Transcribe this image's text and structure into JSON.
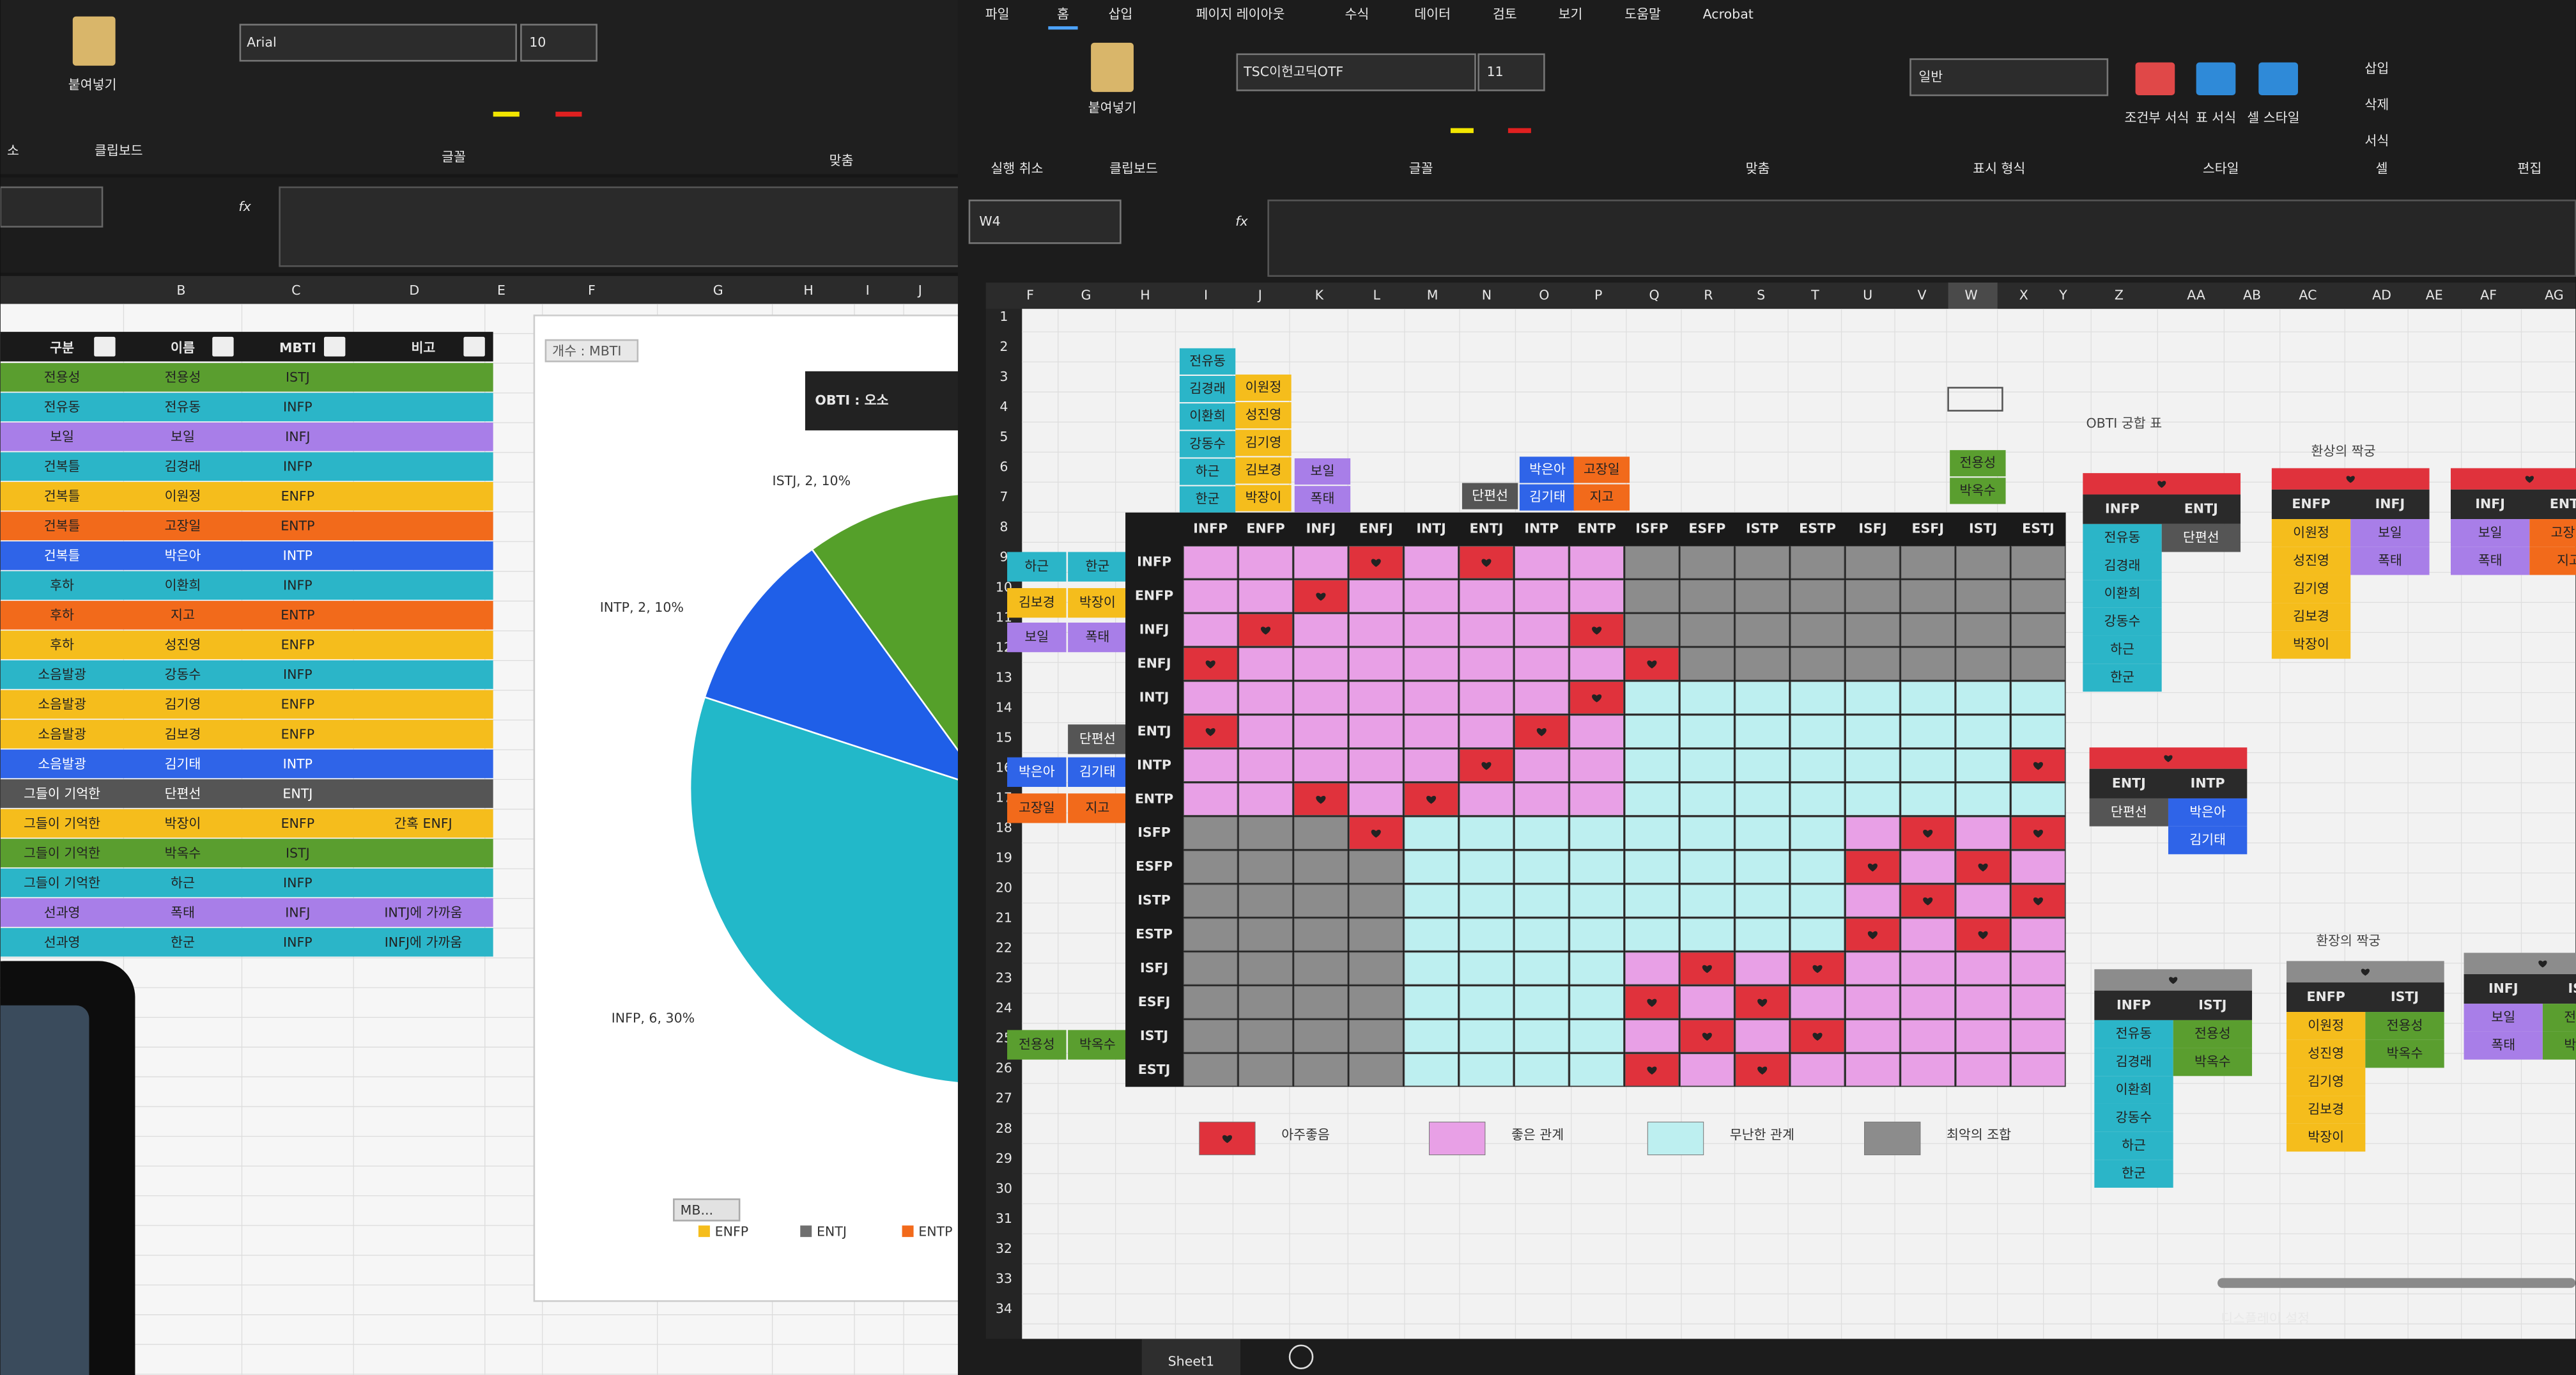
{
  "left_window": {
    "ribbon": {
      "paste": "붙여넣기",
      "font": "Arial",
      "size": 10,
      "fx": "fx",
      "groups": [
        "소",
        "클립보드",
        "글꼴",
        "맞춤"
      ]
    },
    "columns": [
      "B",
      "C",
      "D",
      "E",
      "F",
      "G",
      "H",
      "I",
      "J"
    ],
    "table": {
      "header": [
        "구분",
        "이름",
        "MBTI",
        "비고"
      ],
      "rows": [
        {
          "cells": [
            "전용성",
            "전용성",
            "ISTJ"
          ],
          "color": "#5a9e2f"
        },
        {
          "cells": [
            "전유동",
            "전유동",
            "INFP"
          ],
          "color": "#2bb5c8"
        },
        {
          "cells": [
            "보일",
            "보일",
            "INFJ"
          ],
          "color": "#a87ee8"
        },
        {
          "cells": [
            "건복틀",
            "김경래",
            "INFP"
          ],
          "color": "#2bb5c8"
        },
        {
          "cells": [
            "건복틀",
            "이원정",
            "ENFP"
          ],
          "color": "#f5bd1c"
        },
        {
          "cells": [
            "건복틀",
            "고장일",
            "ENTP"
          ],
          "color": "#f26a1b"
        },
        {
          "cells": [
            "건복틀",
            "박은아",
            "INTP"
          ],
          "color": "#2f64e8"
        },
        {
          "cells": [
            "후하",
            "이환희",
            "INFP"
          ],
          "color": "#2bb5c8"
        },
        {
          "cells": [
            "후하",
            "지고",
            "ENTP"
          ],
          "color": "#f26a1b"
        },
        {
          "cells": [
            "후하",
            "성진영",
            "ENFP"
          ],
          "color": "#f5bd1c"
        },
        {
          "cells": [
            "소음발광",
            "강동수",
            "INFP"
          ],
          "color": "#2bb5c8"
        },
        {
          "cells": [
            "소음발광",
            "김기영",
            "ENFP"
          ],
          "color": "#f5bd1c"
        },
        {
          "cells": [
            "소음발광",
            "김보경",
            "ENFP"
          ],
          "color": "#f5bd1c"
        },
        {
          "cells": [
            "소음발광",
            "김기태",
            "INTP"
          ],
          "color": "#2f64e8"
        },
        {
          "cells": [
            "그들이 기억한",
            "단편선",
            "ENTJ"
          ],
          "color": "#555555"
        },
        {
          "cells": [
            "그들이 기억한",
            "박장이",
            "ENFP",
            "간혹 ENFJ"
          ],
          "color": "#f5bd1c"
        },
        {
          "cells": [
            "그들이 기억한",
            "박옥수",
            "ISTJ"
          ],
          "color": "#5a9e2f"
        },
        {
          "cells": [
            "그들이 기억한",
            "하근",
            "INFP"
          ],
          "color": "#2bb5c8"
        },
        {
          "cells": [
            "선과영",
            "폭태",
            "INFJ",
            "INTJ에 가까움"
          ],
          "color": "#a87ee8"
        },
        {
          "cells": [
            "선과영",
            "한군",
            "INFP",
            "INFJ에 가까움"
          ],
          "color": "#2bb5c8"
        }
      ]
    },
    "chart": {
      "type": "pie",
      "field_label": "개수 : MBTI",
      "title": "OBTI : 오소",
      "filter": "MB...",
      "slices": [
        {
          "name": "INFP",
          "count": 6,
          "percent": 30,
          "label": "INFP, 6, 30%",
          "color": "#22b8c9"
        },
        {
          "name": "INTP",
          "count": 2,
          "percent": 10,
          "label": "INTP, 2, 10%",
          "color": "#1f5fe8"
        },
        {
          "name": "ISTJ",
          "count": 2,
          "percent": 10,
          "label": "ISTJ, 2, 10%",
          "color": "#55a02a"
        }
      ],
      "legend": [
        {
          "name": "ENFP",
          "color": "#f5bd1c"
        },
        {
          "name": "ENTJ",
          "color": "#6f6f6f"
        },
        {
          "name": "ENTP",
          "color": "#f26a1b"
        }
      ]
    }
  },
  "right_window": {
    "menu": [
      "파일",
      "홈",
      "삽입",
      "페이지 레이아웃",
      "수식",
      "데이터",
      "검토",
      "보기",
      "도움말",
      "Acrobat"
    ],
    "ribbon": {
      "font": "TSC이헌고딕OTF",
      "size": 11,
      "number_format": "일반",
      "paste": "붙여넣기",
      "buttons": [
        "조건부 서식",
        "표 서식",
        "셀 스타일",
        "삽입",
        "삭제",
        "서식"
      ],
      "groups": [
        "실행 취소",
        "클립보드",
        "글꼴",
        "맞춤",
        "표시 형식",
        "스타일",
        "셀",
        "편집"
      ]
    },
    "name_box": "W4",
    "fx": "fx",
    "columns": [
      "F",
      "G",
      "H",
      "I",
      "J",
      "K",
      "L",
      "M",
      "N",
      "O",
      "P",
      "Q",
      "R",
      "S",
      "T",
      "U",
      "V",
      "W",
      "X",
      "Y",
      "Z",
      "AA",
      "AB",
      "AC",
      "AD",
      "AE",
      "AF",
      "AG"
    ],
    "rows": [
      1,
      2,
      3,
      4,
      5,
      6,
      7,
      8,
      9,
      10,
      11,
      12,
      13,
      14,
      15,
      16,
      17,
      18,
      19,
      20,
      21,
      22,
      23,
      24,
      25,
      26,
      27,
      28,
      29,
      30,
      31,
      32,
      33,
      34
    ],
    "grid": {
      "types": [
        "INFP",
        "ENFP",
        "INFJ",
        "ENFJ",
        "INTJ",
        "ENTJ",
        "INTP",
        "ENTP",
        "ISFP",
        "ESFP",
        "ISTP",
        "ESTP",
        "ISFJ",
        "ESFJ",
        "ISTJ",
        "ESTJ"
      ],
      "legend": [
        {
          "text": "아주좋음",
          "color": "#e0323c"
        },
        {
          "text": "좋은 관계",
          "color": "#e8a0e6"
        },
        {
          "text": "무난한 관계",
          "color": "#bdeff0"
        },
        {
          "text": "최악의 조합",
          "color": "#8c8c8c"
        }
      ]
    },
    "tags": {
      "top": [
        {
          "items": [
            "전유동",
            "김경래",
            "이환희",
            "강동수",
            "하근",
            "한군"
          ],
          "color": "#2bb5c8"
        },
        {
          "items": [
            "이원정",
            "성진영",
            "김기영",
            "김보경",
            "박장이"
          ],
          "color": "#f5bd1c"
        },
        {
          "items": [
            "보일",
            "폭태"
          ],
          "color": "#a87ee8"
        },
        {
          "items": [
            "단편선"
          ],
          "color": "#555555"
        },
        {
          "items": [
            "박은아",
            "김기태"
          ],
          "color": "#2f64e8"
        },
        {
          "items": [
            "고장일",
            "지고"
          ],
          "color": "#f26a1b"
        },
        {
          "items": [
            "전용성",
            "박옥수"
          ],
          "color": "#5a9e2f"
        }
      ],
      "side": [
        {
          "items": [
            "하근",
            "한군"
          ],
          "color": "#2bb5c8"
        },
        {
          "items": [
            "김보경",
            "박장이"
          ],
          "color": "#f5bd1c"
        },
        {
          "items": [
            "보일",
            "폭태"
          ],
          "color": "#a87ee8"
        },
        {
          "items": [
            "단편선"
          ],
          "color": "#555555"
        },
        {
          "items": [
            "박은아",
            "김기태"
          ],
          "color": "#2f64e8"
        },
        {
          "items": [
            "고장일",
            "지고"
          ],
          "color": "#f26a1b"
        },
        {
          "items": [
            "전용성",
            "박옥수"
          ],
          "color": "#5a9e2f"
        }
      ]
    },
    "compat": {
      "title": "OBTI 궁합 표",
      "captions": [
        "환상의 짝궁",
        "환장의 짝궁"
      ],
      "pairs": [
        {
          "types": [
            "INFP",
            "ENTJ"
          ],
          "left": [
            "전유동",
            "김경래",
            "이환희",
            "강동수",
            "하근",
            "한군"
          ],
          "right": [
            "단편선"
          ],
          "colors": [
            "#2bb5c8",
            "#555555"
          ],
          "header_color": "#e0323c"
        },
        {
          "types": [
            "ENFP",
            "INFJ"
          ],
          "left": [
            "이원정",
            "성진영",
            "김기영",
            "김보경",
            "박장이"
          ],
          "right": [
            "보일",
            "폭태"
          ],
          "colors": [
            "#f5bd1c",
            "#a87ee8"
          ],
          "header_color": "#e0323c"
        },
        {
          "types": [
            "INFJ",
            "ENTP"
          ],
          "left": [
            "보일",
            "폭태"
          ],
          "right": [
            "고장일",
            "지고"
          ],
          "colors": [
            "#a87ee8",
            "#f26a1b"
          ],
          "header_color": "#e0323c"
        },
        {
          "types": [
            "ENTJ",
            "INTP"
          ],
          "left": [
            "단편선"
          ],
          "right": [
            "박은아",
            "김기태"
          ],
          "colors": [
            "#555555",
            "#2f64e8"
          ],
          "header_color": "#e0323c"
        },
        {
          "types": [
            "INFP",
            "ISTJ"
          ],
          "left": [
            "전유동",
            "김경래",
            "이환희",
            "강동수",
            "하근",
            "한군"
          ],
          "right": [
            "전용성",
            "박옥수"
          ],
          "colors": [
            "#2bb5c8",
            "#5a9e2f"
          ],
          "header_color": "#8c8c8c"
        },
        {
          "types": [
            "ENFP",
            "ISTJ"
          ],
          "left": [
            "이원정",
            "성진영",
            "김기영",
            "김보경",
            "박장이"
          ],
          "right": [
            "전용성",
            "박옥수"
          ],
          "colors": [
            "#f5bd1c",
            "#5a9e2f"
          ],
          "header_color": "#8c8c8c"
        },
        {
          "types": [
            "INFJ",
            "ISTJ"
          ],
          "left": [
            "보일",
            "폭태"
          ],
          "right": [
            "전용성",
            "박옥수"
          ],
          "colors": [
            "#a87ee8",
            "#5a9e2f"
          ],
          "header_color": "#8c8c8c"
        }
      ]
    },
    "sheet_tab": "Sheet1",
    "status": "디스플레이 설정"
  }
}
